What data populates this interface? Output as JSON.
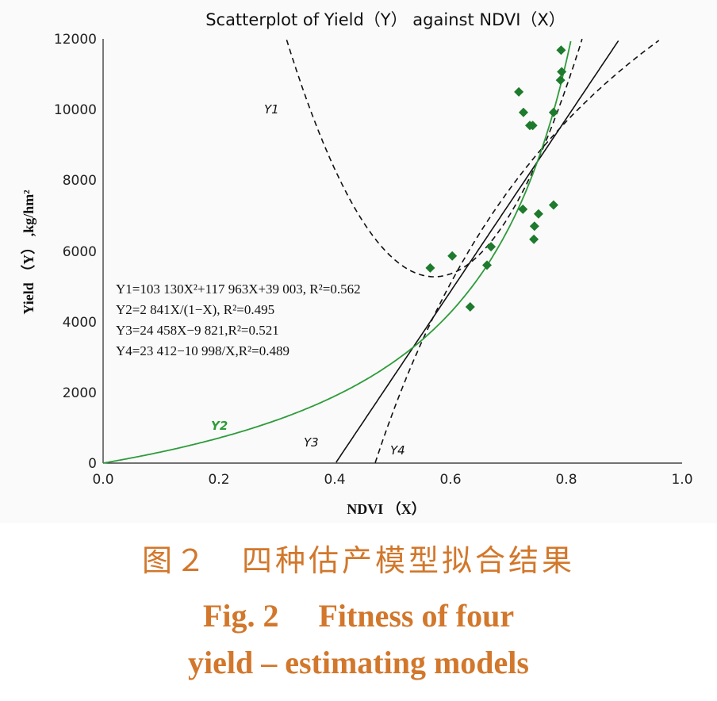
{
  "chart_data": {
    "type": "scatter",
    "title": "Scatterplot of Yield（Y） against NDVI（X）",
    "xlabel": "NDVI （X）",
    "ylabel": "Yield （Y） ,kg/hm²",
    "xlim": [
      0.0,
      1.0
    ],
    "ylim": [
      0,
      12000
    ],
    "x_ticks": [
      "0.0",
      "0.2",
      "0.4",
      "0.6",
      "0.8",
      "1.0"
    ],
    "y_ticks": [
      "0",
      "2000",
      "4000",
      "6000",
      "8000",
      "10000",
      "12000"
    ],
    "grid": false,
    "colors": {
      "points": "#1e7a2c",
      "y2_curve": "#2e9b3a",
      "other_curves": "#111111"
    },
    "points": [
      {
        "x": 0.565,
        "y": 5520
      },
      {
        "x": 0.603,
        "y": 5860
      },
      {
        "x": 0.634,
        "y": 4420
      },
      {
        "x": 0.663,
        "y": 5600
      },
      {
        "x": 0.67,
        "y": 6120
      },
      {
        "x": 0.718,
        "y": 10500
      },
      {
        "x": 0.726,
        "y": 9920
      },
      {
        "x": 0.725,
        "y": 7180
      },
      {
        "x": 0.737,
        "y": 9550
      },
      {
        "x": 0.742,
        "y": 9550
      },
      {
        "x": 0.745,
        "y": 6700
      },
      {
        "x": 0.744,
        "y": 6330
      },
      {
        "x": 0.752,
        "y": 7050
      },
      {
        "x": 0.778,
        "y": 7300
      },
      {
        "x": 0.778,
        "y": 9920
      },
      {
        "x": 0.791,
        "y": 11680
      },
      {
        "x": 0.792,
        "y": 11070
      },
      {
        "x": 0.79,
        "y": 10830
      }
    ],
    "series": [
      {
        "name": "Y1",
        "equation": "Y1=103 130X²+117 963X+39 003, R²=0.562"
      },
      {
        "name": "Y2",
        "equation": "Y2=2 841X/(1−X), R²=0.495"
      },
      {
        "name": "Y3",
        "equation": "Y3=24 458X−9 821,R²=0.521"
      },
      {
        "name": "Y4",
        "equation": "Y4=23 412−10 998/X,R²=0.489"
      }
    ],
    "curve_labels": {
      "y1": "Y1",
      "y2": "Y2",
      "y3": "Y3",
      "y4": "Y4"
    }
  },
  "caption": {
    "cn": "图２　四种估产模型拟合结果",
    "en_line1": "Fig. 2　 Fitness of four",
    "en_line2": "yield – estimating models"
  }
}
